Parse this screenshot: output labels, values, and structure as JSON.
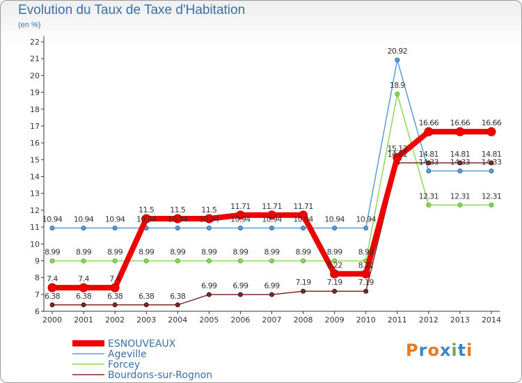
{
  "header": {
    "title": "Evolution du Taux de Taxe d'Habitation",
    "subtitle": "(en %)"
  },
  "logo": {
    "letters": [
      "P",
      "r",
      "o",
      "x",
      "i",
      "t",
      "i"
    ],
    "colors": [
      "#e8791e",
      "#3b86c7",
      "#e8791e",
      "#3b86c7",
      "#6aa84f",
      "#3b86c7",
      "#e8791e"
    ]
  },
  "chart_data": {
    "type": "line",
    "x": [
      2000,
      2001,
      2002,
      2003,
      2004,
      2005,
      2006,
      2007,
      2008,
      2009,
      2010,
      2011,
      2012,
      2013,
      2014
    ],
    "ylim": [
      6,
      22
    ],
    "yticks": [
      6,
      7,
      8,
      9,
      10,
      11,
      12,
      13,
      14,
      15,
      16,
      17,
      18,
      19,
      20,
      21,
      22
    ],
    "xlabel": "",
    "ylabel": "(en %)",
    "grid": false,
    "legend_position": "bottom-left",
    "series": [
      {
        "name": "ESNOUVEAUX",
        "color": "#ee0000",
        "values": [
          7.4,
          7.4,
          7.4,
          11.5,
          11.5,
          11.5,
          11.71,
          11.71,
          11.71,
          8.22,
          8.22,
          15.13,
          16.66,
          16.66,
          16.66
        ],
        "labels": [
          "7.4",
          "7.4",
          "7.4",
          "11.5",
          "11.5",
          "11.5",
          "11.71",
          "11.71",
          "11.71",
          "8.22",
          "8.22",
          "15.13",
          "16.66",
          "16.66",
          "16.66"
        ]
      },
      {
        "name": "Ageville",
        "color": "#5b9bd5",
        "values": [
          10.94,
          10.94,
          10.94,
          10.94,
          10.94,
          10.94,
          10.94,
          10.94,
          10.94,
          10.94,
          10.94,
          20.92,
          14.33,
          14.33,
          14.33
        ],
        "labels": [
          "10.94",
          "10.94",
          "10.94",
          "10.94",
          "10.94",
          "10.94",
          "10.94",
          "10.94",
          "10.94",
          "10.94",
          "10.94",
          "20.92",
          "14.33",
          "14.33",
          "14.33"
        ]
      },
      {
        "name": "Forcey",
        "color": "#8fd65a",
        "values": [
          8.99,
          8.99,
          8.99,
          8.99,
          8.99,
          8.99,
          8.99,
          8.99,
          8.99,
          8.99,
          8.99,
          18.9,
          12.31,
          12.31,
          12.31
        ],
        "labels": [
          "8.99",
          "8.99",
          "8.99",
          "8.99",
          "8.99",
          "8.99",
          "8.99",
          "8.99",
          "8.99",
          "8.99",
          "8.99",
          "18.9",
          "12.31",
          "12.31",
          "12.31"
        ]
      },
      {
        "name": "Bourdons-sur-Rognon",
        "color": "#7a2a2a",
        "values": [
          6.38,
          6.38,
          6.38,
          6.38,
          6.38,
          6.99,
          6.99,
          6.99,
          7.19,
          7.19,
          7.19,
          14.81,
          14.81,
          14.81,
          14.81
        ],
        "labels": [
          "6.38",
          "6.38",
          "6.38",
          "6.38",
          "6.38",
          "6.99",
          "6.99",
          "6.99",
          "7.19",
          "7.19",
          "7.19",
          "14.81",
          "14.81",
          "14.81",
          "14.81"
        ]
      }
    ]
  }
}
